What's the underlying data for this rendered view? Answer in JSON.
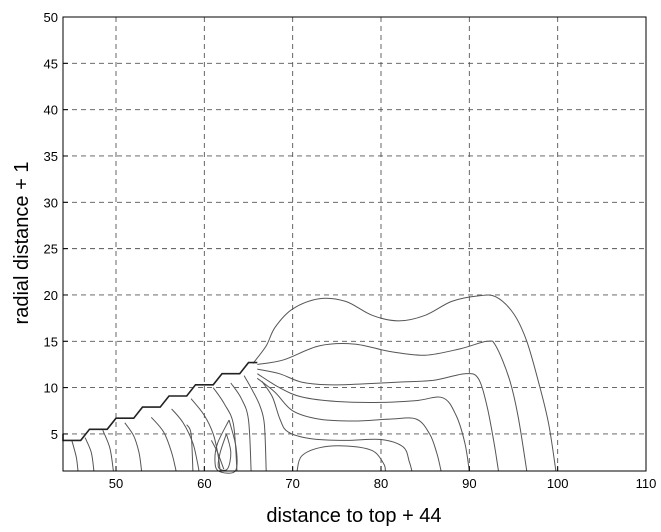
{
  "chart_data": {
    "type": "contour",
    "title": "",
    "xlabel": "distance to top + 44",
    "ylabel": "radial distance + 1",
    "xlim": [
      44,
      110
    ],
    "ylim": [
      1,
      50
    ],
    "x_ticks": [
      50,
      60,
      70,
      80,
      90,
      100,
      110
    ],
    "x_tick_labels": [
      "50",
      "60",
      "70",
      "80",
      "90",
      "100",
      "110"
    ],
    "y_ticks": [
      5,
      10,
      15,
      20,
      25,
      30,
      35,
      40,
      45,
      50
    ],
    "y_tick_labels": [
      "5",
      "10",
      "15",
      "20",
      "25",
      "30",
      "35",
      "40",
      "45",
      "50"
    ],
    "grid": true,
    "colors": {
      "lines": "#555555",
      "grid": "#555555",
      "frame": "#000000"
    },
    "boundary": [
      [
        44,
        5
      ],
      [
        44,
        4.3
      ],
      [
        46,
        4.3
      ],
      [
        47,
        5.5
      ],
      [
        49,
        5.5
      ],
      [
        50,
        6.7
      ],
      [
        52,
        6.7
      ],
      [
        53,
        7.9
      ],
      [
        55,
        7.9
      ],
      [
        56,
        9.1
      ],
      [
        58,
        9.1
      ],
      [
        59,
        10.3
      ],
      [
        61,
        10.3
      ],
      [
        62,
        11.5
      ],
      [
        64,
        11.5
      ],
      [
        65,
        12.7
      ],
      [
        66,
        12.7
      ]
    ],
    "contours": [
      [
        [
          65.5,
          12.6
        ],
        [
          67,
          14.5
        ],
        [
          68,
          16.5
        ],
        [
          70,
          18.5
        ],
        [
          73,
          19.6
        ],
        [
          76,
          19.3
        ],
        [
          79,
          17.8
        ],
        [
          82,
          17.2
        ],
        [
          85,
          17.8
        ],
        [
          88,
          19.3
        ],
        [
          91,
          19.9
        ],
        [
          93,
          19.8
        ],
        [
          95,
          18
        ],
        [
          96.5,
          15
        ],
        [
          98,
          10
        ],
        [
          99,
          6
        ],
        [
          99.8,
          1
        ]
      ],
      [
        [
          66,
          12.5
        ],
        [
          69,
          13
        ],
        [
          73,
          14.5
        ],
        [
          77,
          14.7
        ],
        [
          81,
          13.9
        ],
        [
          85,
          13.5
        ],
        [
          89,
          14.2
        ],
        [
          92,
          15
        ],
        [
          93,
          14.5
        ],
        [
          94.5,
          11
        ],
        [
          95.5,
          7
        ],
        [
          96.5,
          1
        ]
      ],
      [
        [
          66,
          12
        ],
        [
          68.5,
          11.5
        ],
        [
          71,
          10.6
        ],
        [
          74,
          10.3
        ],
        [
          78,
          10.4
        ],
        [
          82,
          10.6
        ],
        [
          86,
          10.8
        ],
        [
          89.5,
          11.5
        ],
        [
          91,
          11
        ],
        [
          92,
          8
        ],
        [
          92.8,
          4
        ],
        [
          93.3,
          1
        ]
      ],
      [
        [
          66,
          11.5
        ],
        [
          68.5,
          10
        ],
        [
          71,
          9
        ],
        [
          75,
          8.5
        ],
        [
          80,
          8.4
        ],
        [
          84,
          8.6
        ],
        [
          87,
          8.9
        ],
        [
          88.5,
          7
        ],
        [
          89.5,
          4
        ],
        [
          90,
          1
        ]
      ],
      [
        [
          66,
          11
        ],
        [
          68,
          9.5
        ],
        [
          70,
          7.5
        ],
        [
          73,
          6.6
        ],
        [
          77,
          6.4
        ],
        [
          81,
          6.6
        ],
        [
          84,
          6.6
        ],
        [
          85.5,
          5
        ],
        [
          86.3,
          3
        ],
        [
          86.8,
          1
        ]
      ],
      [
        [
          66.5,
          10.7
        ],
        [
          67.7,
          9
        ],
        [
          68.6,
          6.5
        ],
        [
          69.5,
          5.2
        ],
        [
          72,
          4.5
        ],
        [
          76,
          4.3
        ],
        [
          80,
          4.4
        ],
        [
          82.5,
          3.6
        ],
        [
          83.2,
          2
        ],
        [
          83.5,
          1
        ]
      ],
      [
        [
          70.5,
          1
        ],
        [
          71,
          2.6
        ],
        [
          73,
          3.5
        ],
        [
          76,
          3.7
        ],
        [
          79,
          3.2
        ],
        [
          80.3,
          1.8
        ],
        [
          80.5,
          1
        ]
      ],
      [
        [
          64.5,
          11.3
        ],
        [
          65.5,
          9.6
        ],
        [
          66.3,
          8
        ],
        [
          66.8,
          6
        ],
        [
          67,
          1
        ]
      ],
      [
        [
          63,
          10.5
        ],
        [
          64.2,
          8.8
        ],
        [
          65,
          6.5
        ],
        [
          65.3,
          1
        ]
      ],
      [
        [
          61,
          10
        ],
        [
          62.3,
          8.2
        ],
        [
          63.3,
          6
        ],
        [
          63.7,
          1
        ]
      ],
      [
        [
          58.5,
          8.8
        ],
        [
          60,
          7
        ],
        [
          61,
          5
        ],
        [
          61.5,
          3
        ],
        [
          61.8,
          1
        ]
      ],
      [
        [
          56.3,
          7.7
        ],
        [
          57.6,
          6.2
        ],
        [
          58.7,
          4
        ],
        [
          59.2,
          2
        ],
        [
          59.4,
          1
        ]
      ],
      [
        [
          54,
          6.8
        ],
        [
          55.4,
          5.2
        ],
        [
          56.3,
          3
        ],
        [
          56.8,
          1
        ]
      ],
      [
        [
          51,
          6.2
        ],
        [
          52,
          4.8
        ],
        [
          52.6,
          3
        ],
        [
          52.9,
          1
        ]
      ],
      [
        [
          48.5,
          5.4
        ],
        [
          49.3,
          3.5
        ],
        [
          49.7,
          1
        ]
      ],
      [
        [
          46.5,
          4.6
        ],
        [
          47.2,
          3
        ],
        [
          47.5,
          1
        ]
      ],
      [
        [
          45,
          4.3
        ],
        [
          45.5,
          2.5
        ],
        [
          45.7,
          1
        ]
      ],
      [
        [
          60.8,
          4.3
        ],
        [
          61.5,
          3
        ],
        [
          62.2,
          1.2
        ]
      ],
      [
        [
          58,
          6
        ],
        [
          58.5,
          5
        ],
        [
          58.7,
          1
        ]
      ],
      [
        [
          62.5,
          5
        ],
        [
          61.8,
          3
        ],
        [
          61.6,
          1.4
        ],
        [
          62.6,
          1.2
        ],
        [
          63,
          3
        ],
        [
          62.5,
          5
        ]
      ],
      [
        [
          62.8,
          6.5
        ],
        [
          61.5,
          4
        ],
        [
          61.2,
          2.2
        ],
        [
          61.6,
          1
        ],
        [
          63.5,
          1
        ],
        [
          63.6,
          3.5
        ],
        [
          62.8,
          6.5
        ]
      ]
    ]
  }
}
